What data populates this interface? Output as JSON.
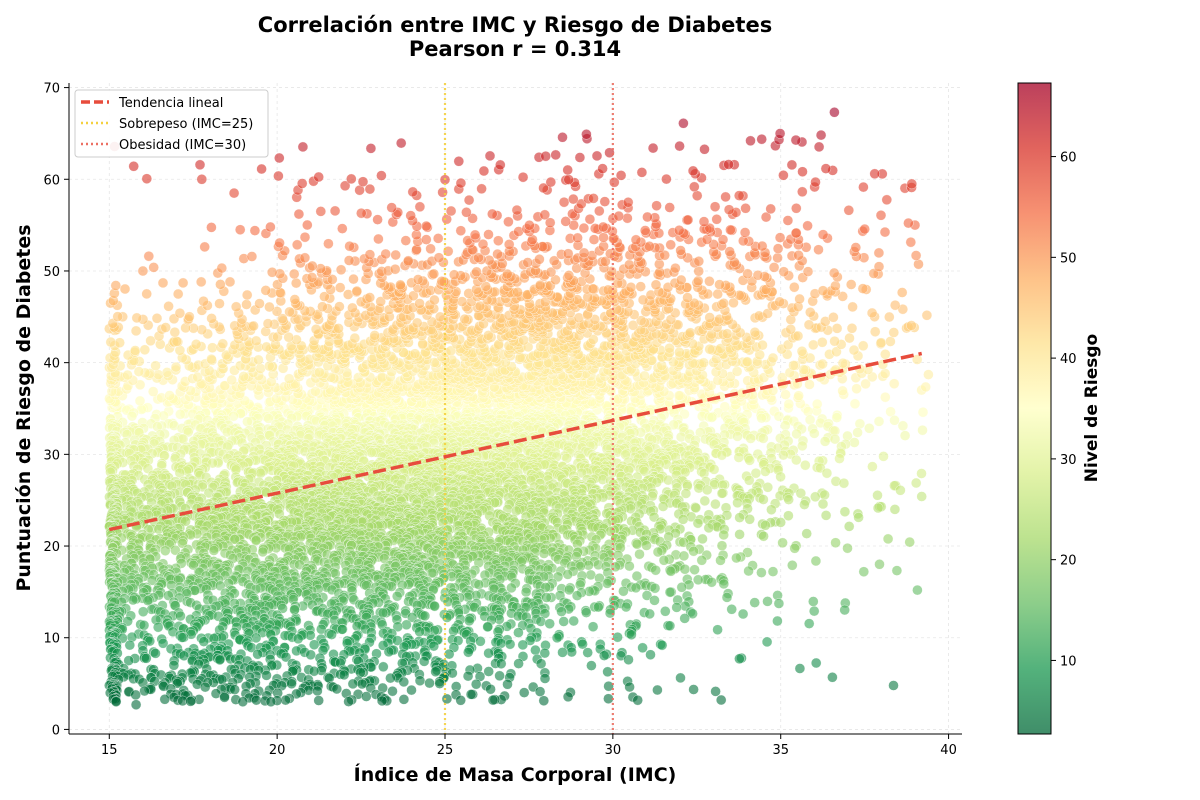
{
  "chart_data": {
    "type": "scatter",
    "title": "Correlación entre IMC y Riesgo de Diabetes",
    "subtitle": "Pearson r = 0.314",
    "xlabel": "Índice de Masa Corporal (IMC)",
    "ylabel": "Puntuación de Riesgo de Diabetes",
    "xlim": [
      13.8,
      40.4
    ],
    "ylim": [
      -0.5,
      70.5
    ],
    "xticks": [
      15,
      20,
      25,
      30,
      35,
      40
    ],
    "yticks": [
      0,
      10,
      20,
      30,
      40,
      50,
      60,
      70
    ],
    "grid": true,
    "legend_position": "top-left",
    "colormap": "RdYlGn_r",
    "colorbar": {
      "label": "Nivel de Riesgo",
      "range": [
        2.7,
        67.3
      ],
      "ticks": [
        10,
        20,
        30,
        40,
        50,
        60
      ]
    },
    "trend_line": {
      "name": "Tendencia lineal",
      "x": [
        15.0,
        39.2
      ],
      "y": [
        21.8,
        41.0
      ],
      "color": "#e74c3c"
    },
    "reference_lines": [
      {
        "name": "Sobrepeso (IMC=25)",
        "x": 25,
        "color": "#f4d03f"
      },
      {
        "name": "Obesidad (IMC=30)",
        "x": 30,
        "color": "#ec7063"
      }
    ],
    "sample_points": [
      {
        "x": 15.8,
        "y": 2.7
      },
      {
        "x": 15.0,
        "y": 4.8
      },
      {
        "x": 16.0,
        "y": 5.1
      },
      {
        "x": 21.2,
        "y": 4.2
      },
      {
        "x": 18.6,
        "y": 4.6
      },
      {
        "x": 19.2,
        "y": 5.0
      },
      {
        "x": 17.5,
        "y": 5.5
      },
      {
        "x": 22.9,
        "y": 5.3
      },
      {
        "x": 32.1,
        "y": 66.1
      },
      {
        "x": 36.6,
        "y": 67.3
      },
      {
        "x": 34.1,
        "y": 64.2
      },
      {
        "x": 31.2,
        "y": 63.4
      },
      {
        "x": 29.9,
        "y": 62.9
      },
      {
        "x": 27.8,
        "y": 62.4
      },
      {
        "x": 37.8,
        "y": 60.6
      },
      {
        "x": 38.9,
        "y": 59.1
      },
      {
        "x": 39.0,
        "y": 55.0
      },
      {
        "x": 39.2,
        "y": 25.4
      },
      {
        "x": 39.4,
        "y": 38.7
      },
      {
        "x": 38.4,
        "y": 24.0
      },
      {
        "x": 37.3,
        "y": 23.5
      },
      {
        "x": 33.4,
        "y": 14.4
      },
      {
        "x": 31.7,
        "y": 11.3
      },
      {
        "x": 30.7,
        "y": 11.5
      },
      {
        "x": 15.0,
        "y": 43.7
      },
      {
        "x": 15.4,
        "y": 45.0
      },
      {
        "x": 16.0,
        "y": 50.0
      },
      {
        "x": 18.9,
        "y": 54.5
      },
      {
        "x": 19.8,
        "y": 54.8
      },
      {
        "x": 21.3,
        "y": 56.5
      }
    ],
    "n_points_approx": 15000
  }
}
